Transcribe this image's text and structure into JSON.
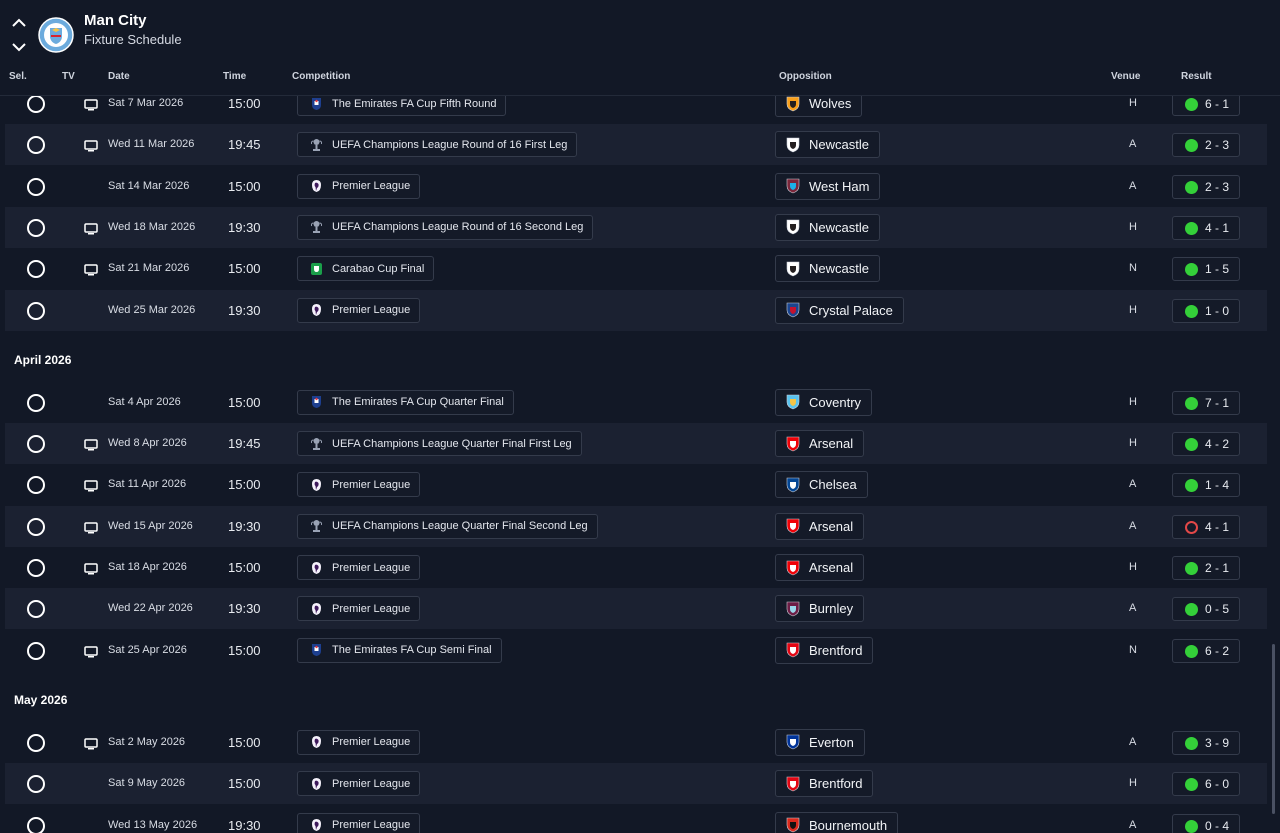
{
  "header": {
    "club_name": "Man City",
    "subtitle": "Fixture Schedule",
    "nav_up_icon": "chevron-up-icon",
    "nav_down_icon": "chevron-down-icon",
    "crest_icon": "man-city-crest-icon"
  },
  "columns": {
    "sel": "Sel.",
    "tv": "TV",
    "date": "Date",
    "time": "Time",
    "competition": "Competition",
    "opposition": "Opposition",
    "venue": "Venue",
    "result": "Result"
  },
  "colors": {
    "background": "#121826",
    "row_alt": "#1b2131",
    "win": "#34d039",
    "loss": "#e24848"
  },
  "items": [
    {
      "kind": "fixture",
      "date": "Sat 7 Mar 2026",
      "time": "15:00",
      "tv": true,
      "competition": "The Emirates FA Cup Fifth Round",
      "comp_icon": "fa-cup",
      "opponent": "Wolves",
      "badge": "wolves",
      "venue": "H",
      "result": "6 - 1",
      "outcome": "win"
    },
    {
      "kind": "fixture",
      "date": "Wed 11 Mar 2026",
      "time": "19:45",
      "tv": true,
      "competition": "UEFA Champions League Round of 16  First Leg",
      "comp_icon": "ucl",
      "opponent": "Newcastle",
      "badge": "newcastle",
      "venue": "A",
      "result": "2 - 3",
      "outcome": "win"
    },
    {
      "kind": "fixture",
      "date": "Sat 14 Mar 2026",
      "time": "15:00",
      "tv": false,
      "competition": "Premier League",
      "comp_icon": "pl",
      "opponent": "West Ham",
      "badge": "westham",
      "venue": "A",
      "result": "2 - 3",
      "outcome": "win"
    },
    {
      "kind": "fixture",
      "date": "Wed 18 Mar 2026",
      "time": "19:30",
      "tv": true,
      "competition": "UEFA Champions League Round of 16  Second Leg",
      "comp_icon": "ucl",
      "opponent": "Newcastle",
      "badge": "newcastle",
      "venue": "H",
      "result": "4 - 1",
      "outcome": "win"
    },
    {
      "kind": "fixture",
      "date": "Sat 21 Mar 2026",
      "time": "15:00",
      "tv": true,
      "competition": "Carabao Cup Final",
      "comp_icon": "carabao",
      "opponent": "Newcastle",
      "badge": "newcastle",
      "venue": "N",
      "result": "1 - 5",
      "outcome": "win"
    },
    {
      "kind": "fixture",
      "date": "Wed 25 Mar 2026",
      "time": "19:30",
      "tv": false,
      "competition": "Premier League",
      "comp_icon": "pl",
      "opponent": "Crystal Palace",
      "badge": "palace",
      "venue": "H",
      "result": "1 - 0",
      "outcome": "win"
    },
    {
      "kind": "month",
      "label": "April 2026"
    },
    {
      "kind": "fixture",
      "date": "Sat 4 Apr 2026",
      "time": "15:00",
      "tv": false,
      "competition": "The Emirates FA Cup Quarter Final",
      "comp_icon": "fa-cup",
      "opponent": "Coventry",
      "badge": "coventry",
      "venue": "H",
      "result": "7 - 1",
      "outcome": "win"
    },
    {
      "kind": "fixture",
      "date": "Wed 8 Apr 2026",
      "time": "19:45",
      "tv": true,
      "competition": "UEFA Champions League Quarter Final First Leg",
      "comp_icon": "ucl",
      "opponent": "Arsenal",
      "badge": "arsenal",
      "venue": "H",
      "result": "4 - 2",
      "outcome": "win"
    },
    {
      "kind": "fixture",
      "date": "Sat 11 Apr 2026",
      "time": "15:00",
      "tv": true,
      "competition": "Premier League",
      "comp_icon": "pl",
      "opponent": "Chelsea",
      "badge": "chelsea",
      "venue": "A",
      "result": "1 - 4",
      "outcome": "win"
    },
    {
      "kind": "fixture",
      "date": "Wed 15 Apr 2026",
      "time": "19:30",
      "tv": true,
      "competition": "UEFA Champions League Quarter Final Second Leg",
      "comp_icon": "ucl",
      "opponent": "Arsenal",
      "badge": "arsenal",
      "venue": "A",
      "result": "4 - 1",
      "outcome": "loss"
    },
    {
      "kind": "fixture",
      "date": "Sat 18 Apr 2026",
      "time": "15:00",
      "tv": true,
      "competition": "Premier League",
      "comp_icon": "pl",
      "opponent": "Arsenal",
      "badge": "arsenal",
      "venue": "H",
      "result": "2 - 1",
      "outcome": "win"
    },
    {
      "kind": "fixture",
      "date": "Wed 22 Apr 2026",
      "time": "19:30",
      "tv": false,
      "competition": "Premier League",
      "comp_icon": "pl",
      "opponent": "Burnley",
      "badge": "burnley",
      "venue": "A",
      "result": "0 - 5",
      "outcome": "win"
    },
    {
      "kind": "fixture",
      "date": "Sat 25 Apr 2026",
      "time": "15:00",
      "tv": true,
      "competition": "The Emirates FA Cup Semi Final",
      "comp_icon": "fa-cup",
      "opponent": "Brentford",
      "badge": "brentford",
      "venue": "N",
      "result": "6 - 2",
      "outcome": "win"
    },
    {
      "kind": "month",
      "label": "May 2026"
    },
    {
      "kind": "fixture",
      "date": "Sat 2 May 2026",
      "time": "15:00",
      "tv": true,
      "competition": "Premier League",
      "comp_icon": "pl",
      "opponent": "Everton",
      "badge": "everton",
      "venue": "A",
      "result": "3 - 9",
      "outcome": "win"
    },
    {
      "kind": "fixture",
      "date": "Sat 9 May 2026",
      "time": "15:00",
      "tv": false,
      "competition": "Premier League",
      "comp_icon": "pl",
      "opponent": "Brentford",
      "badge": "brentford",
      "venue": "H",
      "result": "6 - 0",
      "outcome": "win"
    },
    {
      "kind": "fixture",
      "date": "Wed 13 May 2026",
      "time": "19:30",
      "tv": false,
      "competition": "Premier League",
      "comp_icon": "pl",
      "opponent": "Bournemouth",
      "badge": "bournemouth",
      "venue": "A",
      "result": "0 - 4",
      "outcome": "win"
    }
  ]
}
